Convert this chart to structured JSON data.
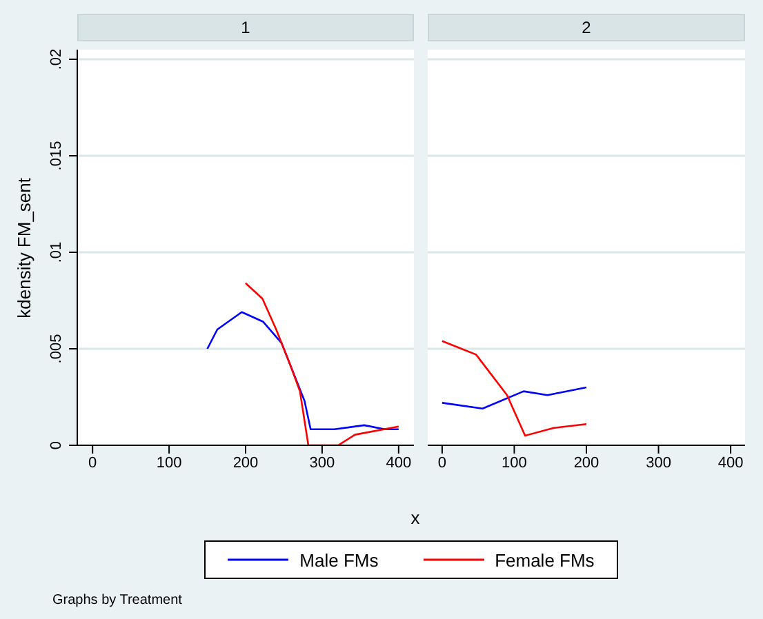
{
  "chart_data": [
    {
      "type": "line",
      "title": "1",
      "ylabel": "kdensity FM_sent",
      "xlabel": "x",
      "legend": "bottom",
      "grid": "y",
      "annotations": [
        "Graphs by Treatment"
      ],
      "xlim": [
        -20,
        420
      ],
      "xticks": [
        0,
        100,
        200,
        300,
        400
      ],
      "ylim": [
        0,
        0.0205
      ],
      "yticks": [
        0,
        {
          "value": 0.005,
          "label": ".005"
        },
        {
          "value": 0.01,
          "label": ".01"
        },
        {
          "value": 0.015,
          "label": ".015"
        },
        {
          "value": 0.02,
          "label": ".02"
        }
      ],
      "series": [
        {
          "name": "Male FMs",
          "color": "#0000ff",
          "x": [
            150,
            163,
            195,
            223,
            247,
            277,
            285,
            316,
            355,
            382,
            400
          ],
          "values": [
            0.005,
            0.006,
            0.0069,
            0.0064,
            0.0053,
            0.0023,
            0.00083,
            0.00083,
            0.00104,
            0.00083,
            0.00083
          ]
        },
        {
          "name": "Female FMs",
          "color": "#ff0000",
          "x": [
            200,
            222,
            240,
            258,
            271,
            282,
            321,
            343,
            400
          ],
          "values": [
            0.0084,
            0.0076,
            0.006,
            0.0042,
            0.0028,
            0,
            0,
            0.00055,
            0.00097
          ]
        }
      ]
    },
    {
      "type": "line",
      "title": "2",
      "tick_labels": "x",
      "grid": "y",
      "xlim": [
        -20,
        420
      ],
      "xticks": [
        0,
        100,
        200,
        300,
        400
      ],
      "ylim": [
        0,
        0.0205
      ],
      "yticks": [
        0,
        0.005,
        0.01,
        0.015,
        0.02
      ],
      "series": [
        {
          "color": "#0000ff",
          "x": [
            0,
            56,
            113,
            146,
            200
          ],
          "values": [
            0.0022,
            0.0019,
            0.0028,
            0.0026,
            0.003
          ]
        },
        {
          "color": "#ff0000",
          "x": [
            0,
            47,
            90,
            115,
            155,
            200
          ],
          "values": [
            0.0054,
            0.0047,
            0.0026,
            0.0005,
            0.0009,
            0.0011
          ]
        }
      ]
    }
  ]
}
